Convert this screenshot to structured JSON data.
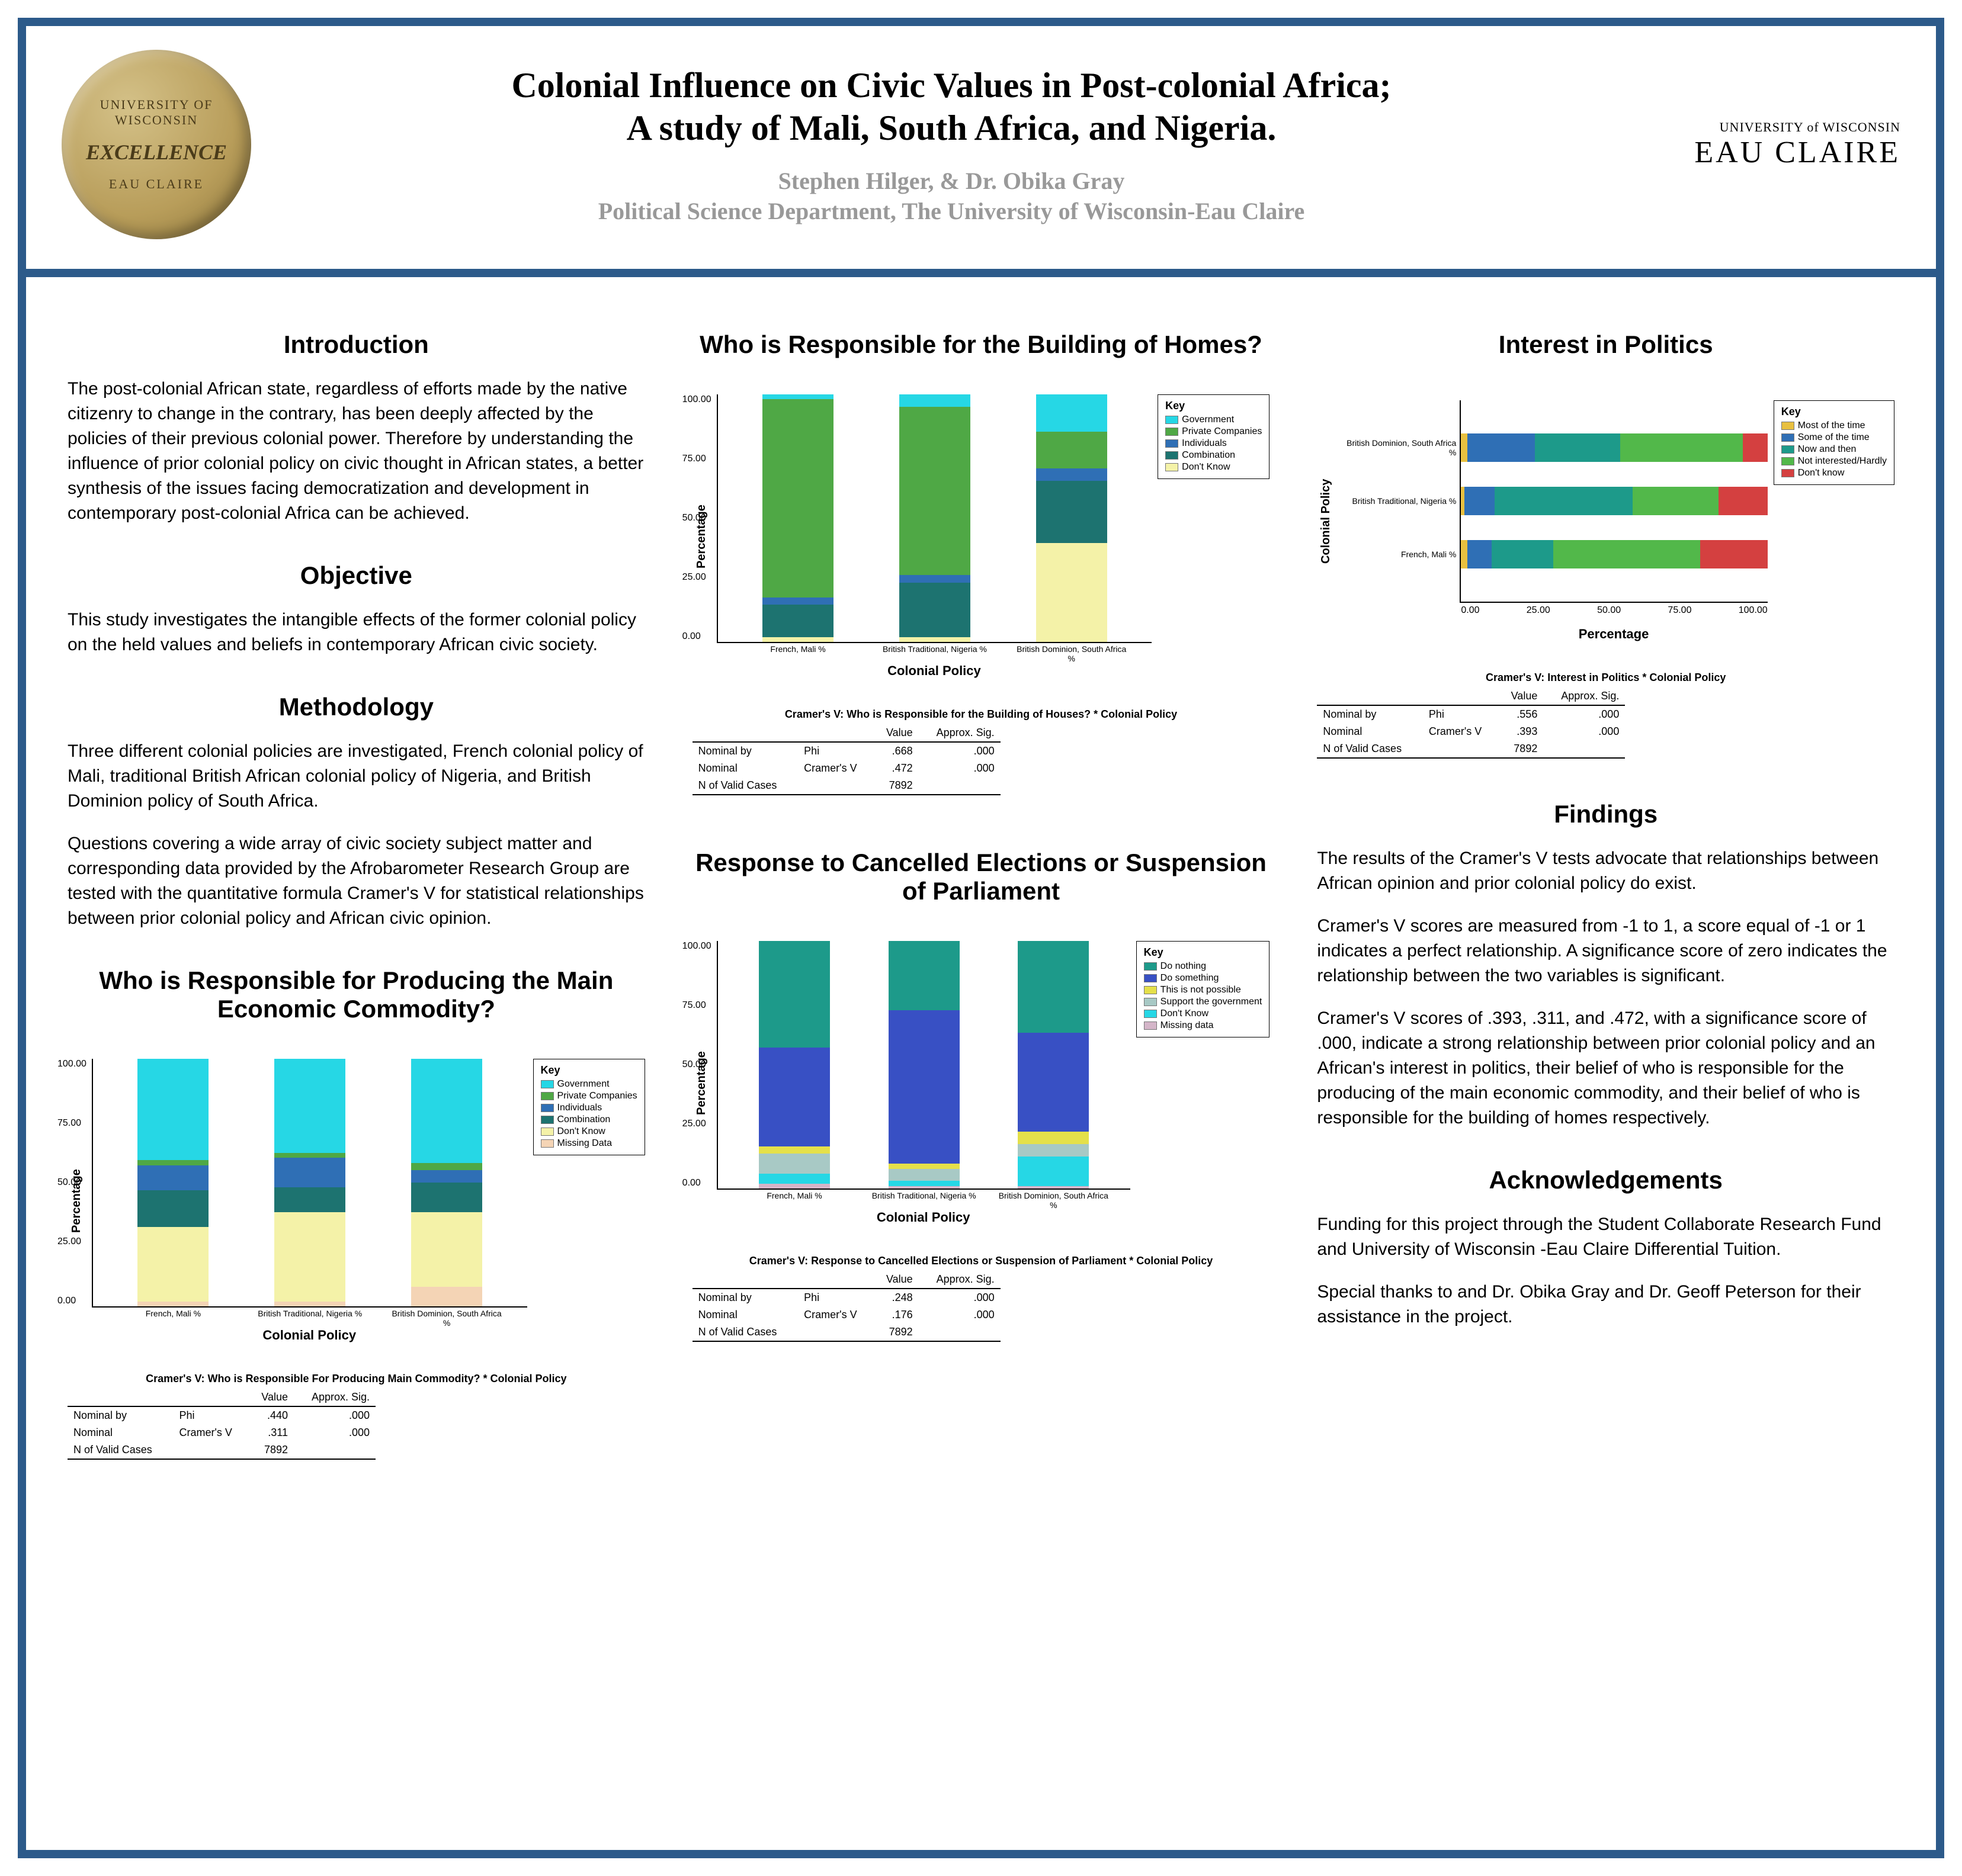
{
  "header": {
    "seal_top": "UNIVERSITY OF WISCONSIN",
    "seal_mid": "EXCELLENCE",
    "seal_bot": "EAU CLAIRE",
    "title_top": "Colonial Influence on Civic Values in Post-colonial Africa;",
    "title_bot": "A study of Mali, South Africa, and Nigeria.",
    "authors": "Stephen Hilger, & Dr. Obika Gray",
    "affiliation": "Political Science Department, The University of Wisconsin-Eau Claire",
    "uni_top": "UNIVERSITY of WISCONSIN",
    "uni_bottom": "EAU CLAIRE"
  },
  "sections": {
    "intro_h": "Introduction",
    "intro_p": "The post-colonial African state, regardless of efforts made by the native citizenry to change in the contrary, has been deeply affected by the policies of their previous colonial power.  Therefore by understanding the influence of prior colonial policy on civic thought in African states, a better synthesis of the issues facing democratization and development in contemporary post-colonial Africa can be achieved.",
    "obj_h": "Objective",
    "obj_p": "This study investigates the intangible effects of the former colonial policy on the held values and beliefs in contemporary African civic society.",
    "meth_h": "Methodology",
    "meth_p1": "Three different colonial policies are investigated, French colonial policy of Mali, traditional British African colonial policy of Nigeria, and British Dominion policy of South Africa.",
    "meth_p2": "Questions covering a wide array of civic society subject matter and corresponding data provided by the Afrobarometer Research Group are tested with the quantitative formula Cramer's V for statistical relationships between prior colonial policy and African civic opinion.",
    "commodity_h": "Who is Responsible for Producing the Main Economic Commodity?",
    "homes_h": "Who is Responsible for the Building of Homes?",
    "elections_h": "Response to Cancelled Elections or Suspension of Parliament",
    "interest_h": "Interest in Politics",
    "findings_h": "Findings",
    "findings_p1": "The results of the Cramer's V tests advocate that relationships between African opinion and prior colonial policy do exist.",
    "findings_p2": "Cramer's V scores are measured from -1 to 1, a score equal of -1 or 1 indicates a perfect relationship.  A significance score of zero indicates the relationship between the two variables is significant.",
    "findings_p3": "Cramer's V scores of .393, .311, and .472, with a significance score of .000, indicate a strong relationship between prior colonial policy and an African's interest in politics, their belief of who is responsible for the producing of the main economic commodity, and their belief of who is responsible for the building of homes respectively.",
    "ack_h": "Acknowledgements",
    "ack_p1": "Funding for this project through the Student Collaborate Research Fund and University of Wisconsin -Eau Claire Differential Tuition.",
    "ack_p2": "Special thanks to and Dr. Obika Gray and Dr. Geoff Peterson for their assistance in the project."
  },
  "charts": {
    "commodity": {
      "ylabel": "Percentage",
      "xlabel": "Colonial Policy",
      "ylim": [
        0,
        100
      ],
      "yticks": [
        "0.00",
        "25.00",
        "50.00",
        "75.00",
        "100.00"
      ],
      "categories": [
        "French, Mali %",
        "British Traditional, Nigeria %",
        "British Dominion, South Africa %"
      ],
      "series": [
        {
          "name": "Government",
          "color": "#26d7e5"
        },
        {
          "name": "Private Companies",
          "color": "#4fa845"
        },
        {
          "name": "Individuals",
          "color": "#2f6fb5"
        },
        {
          "name": "Combination",
          "color": "#1d7370"
        },
        {
          "name": "Don't Know",
          "color": "#f4f2a8"
        },
        {
          "name": "Missing Data",
          "color": "#f4d4b5"
        }
      ],
      "stacks": [
        [
          2,
          30,
          15,
          10,
          2,
          41
        ],
        [
          2,
          36,
          10,
          12,
          2,
          38
        ],
        [
          8,
          30,
          12,
          5,
          3,
          42
        ]
      ],
      "legend_title": "Key"
    },
    "homes": {
      "ylabel": "Percentage",
      "xlabel": "Colonial Policy",
      "ylim": [
        0,
        100
      ],
      "yticks": [
        "0.00",
        "25.00",
        "50.00",
        "75.00",
        "100.00"
      ],
      "categories": [
        "French, Mali %",
        "British Traditional, Nigeria %",
        "British Dominion, South Africa %"
      ],
      "series": [
        {
          "name": "Government",
          "color": "#26d7e5"
        },
        {
          "name": "Private Companies",
          "color": "#4fa845"
        },
        {
          "name": "Individuals",
          "color": "#2f6fb5"
        },
        {
          "name": "Combination",
          "color": "#1d7370"
        },
        {
          "name": "Don't Know",
          "color": "#f4f2a8"
        }
      ],
      "stacks": [
        [
          2,
          13,
          3,
          80,
          2
        ],
        [
          2,
          22,
          3,
          68,
          5
        ],
        [
          40,
          25,
          5,
          15,
          15
        ]
      ],
      "legend_title": "Key"
    },
    "elections": {
      "ylabel": "Percentage",
      "xlabel": "Colonial Policy",
      "ylim": [
        0,
        100
      ],
      "yticks": [
        "0.00",
        "25.00",
        "50.00",
        "75.00",
        "100.00"
      ],
      "categories": [
        "French, Mali %",
        "British Traditional, Nigeria %",
        "British Dominion, South Africa %"
      ],
      "series": [
        {
          "name": "Do nothing",
          "color": "#1d9a8a"
        },
        {
          "name": "Do something",
          "color": "#3850c4"
        },
        {
          "name": "This is not possible",
          "color": "#e5e04a"
        },
        {
          "name": "Support the government",
          "color": "#a8c9c5"
        },
        {
          "name": "Don't Know",
          "color": "#26d7e5"
        },
        {
          "name": "Missing data",
          "color": "#d4b5c8"
        }
      ],
      "stacks": [
        [
          2,
          4,
          8,
          3,
          40,
          43
        ],
        [
          1,
          2,
          5,
          2,
          62,
          28
        ],
        [
          1,
          12,
          5,
          5,
          40,
          37
        ]
      ],
      "legend_title": "Key"
    },
    "interest": {
      "ylabel": "Colonial Policy",
      "xlabel": "Percentage",
      "xlim": [
        0,
        100
      ],
      "xticks": [
        "0.00",
        "25.00",
        "50.00",
        "75.00",
        "100.00"
      ],
      "categories": [
        "British Dominion, South Africa %",
        "British Traditional, Nigeria %",
        "French, Mali %"
      ],
      "series": [
        {
          "name": "Most of the time",
          "color": "#e8c040"
        },
        {
          "name": "Some of the time",
          "color": "#2f6fb5"
        },
        {
          "name": "Now and then",
          "color": "#1d9a8a"
        },
        {
          "name": "Not interested/Hardly",
          "color": "#52b84a"
        },
        {
          "name": "Don't know",
          "color": "#d44040"
        }
      ],
      "stacks": [
        [
          2,
          22,
          28,
          40,
          8
        ],
        [
          1,
          10,
          45,
          28,
          16
        ],
        [
          2,
          8,
          20,
          48,
          22
        ]
      ],
      "legend_title": "Key"
    }
  },
  "tables": {
    "commodity": {
      "title": "Cramer's V: Who is Responsible For Producing Main Commodity? * Colonial Policy",
      "headers": [
        "",
        "",
        "Value",
        "Approx. Sig."
      ],
      "rows": [
        [
          "Nominal by",
          "Phi",
          ".440",
          ".000"
        ],
        [
          "Nominal",
          "Cramer's V",
          ".311",
          ".000"
        ],
        [
          "N of Valid Cases",
          "",
          "7892",
          ""
        ]
      ]
    },
    "homes": {
      "title": "Cramer's V:  Who is Responsible for the Building of Houses? * Colonial Policy",
      "headers": [
        "",
        "",
        "Value",
        "Approx. Sig."
      ],
      "rows": [
        [
          "Nominal by",
          "Phi",
          ".668",
          ".000"
        ],
        [
          "Nominal",
          "Cramer's V",
          ".472",
          ".000"
        ],
        [
          "N of Valid Cases",
          "",
          "7892",
          ""
        ]
      ]
    },
    "elections": {
      "title": "Cramer's V:  Response to Cancelled Elections or Suspension of Parliament * Colonial Policy",
      "headers": [
        "",
        "",
        "Value",
        "Approx. Sig."
      ],
      "rows": [
        [
          "Nominal by",
          "Phi",
          ".248",
          ".000"
        ],
        [
          "Nominal",
          "Cramer's V",
          ".176",
          ".000"
        ],
        [
          "N of Valid Cases",
          "",
          "7892",
          ""
        ]
      ]
    },
    "interest": {
      "title": "Cramer's V: Interest in Politics * Colonial Policy",
      "headers": [
        "",
        "",
        "Value",
        "Approx. Sig."
      ],
      "rows": [
        [
          "Nominal by",
          "Phi",
          ".556",
          ".000"
        ],
        [
          "Nominal",
          "Cramer's V",
          ".393",
          ".000"
        ],
        [
          "N of Valid Cases",
          "",
          "7892",
          ""
        ]
      ]
    }
  }
}
